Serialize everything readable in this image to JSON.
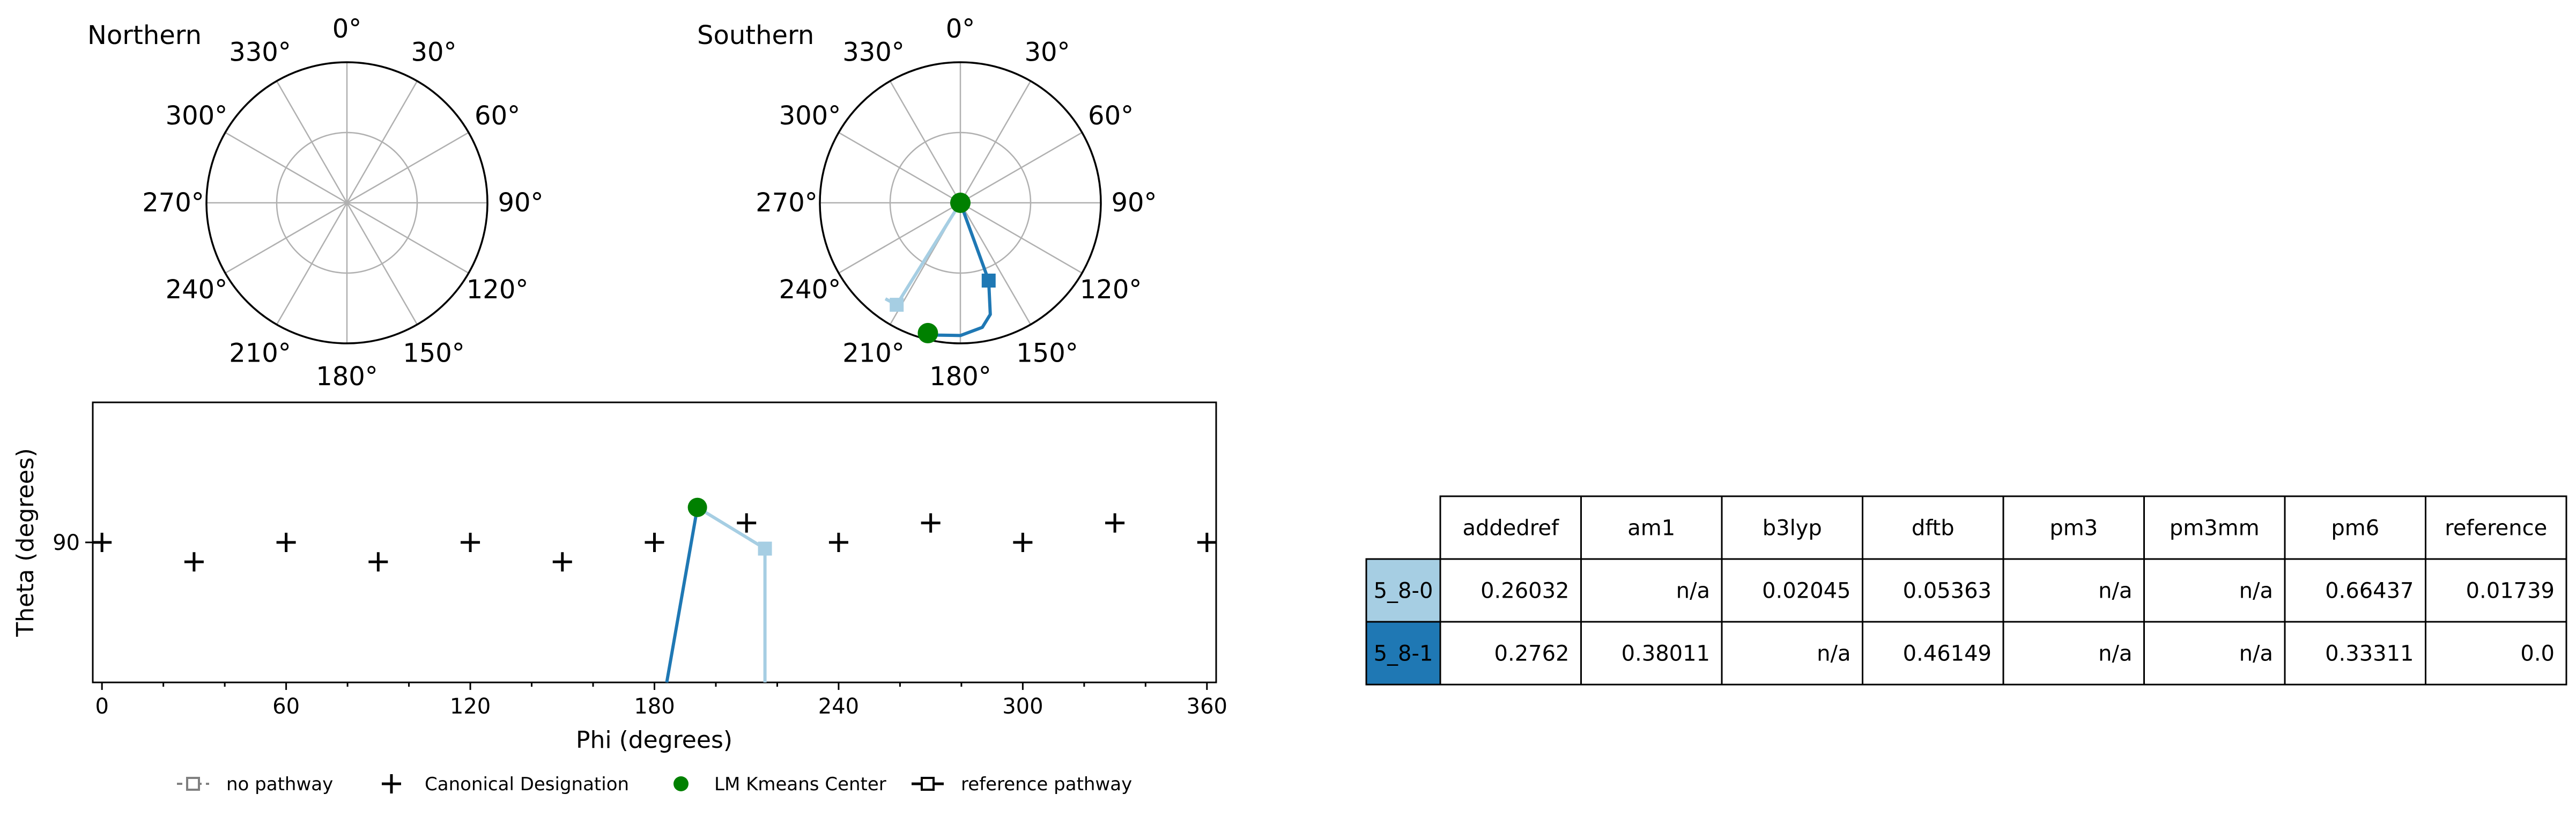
{
  "chart_data": [
    {
      "type": "polar",
      "title": "Northern",
      "angular_ticks": [
        "0°",
        "30°",
        "60°",
        "90°",
        "120°",
        "150°",
        "180°",
        "210°",
        "240°",
        "270°",
        "300°",
        "330°"
      ],
      "radial_ticks": [],
      "grid": true,
      "series": []
    },
    {
      "type": "polar",
      "title": "Southern",
      "angular_ticks": [
        "0°",
        "30°",
        "60°",
        "90°",
        "120°",
        "150°",
        "180°",
        "210°",
        "240°",
        "270°",
        "300°",
        "330°"
      ],
      "radial_ticks": [],
      "grid": true,
      "rlim": [
        180,
        90
      ],
      "series": [
        {
          "name": "LM Kmeans Center",
          "kind": "marker",
          "color": "#008000",
          "points": [
            [
              0,
              180
            ],
            [
              194,
              94
            ]
          ]
        },
        {
          "name": "5_8-1",
          "kind": "path",
          "color": "#1f78b4",
          "points": [
            [
              0,
              180
            ],
            [
              160,
              127
            ],
            [
              165,
              106
            ],
            [
              170,
              99
            ],
            [
              180,
              95
            ],
            [
              190,
              94
            ],
            [
              194,
              94
            ]
          ],
          "end_marker": "square"
        },
        {
          "name": "5_8-0",
          "kind": "path",
          "color": "#a6cee3",
          "points": [
            [
              0,
              180
            ],
            [
              212,
              103
            ],
            [
              218,
              102
            ]
          ],
          "end_marker": "square"
        }
      ]
    },
    {
      "type": "line",
      "xlabel": "Phi (degrees)",
      "ylabel": "Theta (degrees)",
      "xlim": [
        -3,
        363
      ],
      "ylim": [
        72,
        108
      ],
      "xticks": [
        0,
        60,
        120,
        180,
        240,
        300,
        360
      ],
      "yticks": [
        90
      ],
      "grid": false,
      "legend_position": "bottom",
      "canonical_points": [
        [
          0,
          90
        ],
        [
          30,
          87.5
        ],
        [
          60,
          90
        ],
        [
          90,
          87.5
        ],
        [
          120,
          90
        ],
        [
          150,
          87.5
        ],
        [
          180,
          90
        ],
        [
          210,
          92.5
        ],
        [
          240,
          90
        ],
        [
          270,
          92.5
        ],
        [
          300,
          90
        ],
        [
          330,
          92.5
        ],
        [
          360,
          90
        ]
      ],
      "kmeans_centers": [
        [
          194,
          94.5
        ]
      ],
      "pathways": [
        {
          "name": "5_8-1",
          "color": "#1f78b4",
          "points": [
            [
              184,
              72
            ],
            [
              194,
              94.5
            ]
          ]
        },
        {
          "name": "5_8-0",
          "color": "#a6cee3",
          "points": [
            [
              194,
              94.5
            ],
            [
              216,
              89.2
            ],
            [
              216,
              72
            ]
          ],
          "end_marker_index": 1
        }
      ]
    },
    {
      "type": "table",
      "columns": [
        "addedref",
        "am1",
        "b3lyp",
        "dftb",
        "pm3",
        "pm3mm",
        "pm6",
        "reference"
      ],
      "rows": [
        {
          "label": "5_8-0",
          "color": "#a6cee3",
          "values": [
            "0.26032",
            "n/a",
            "0.02045",
            "0.05363",
            "n/a",
            "n/a",
            "0.66437",
            "0.01739"
          ]
        },
        {
          "label": "5_8-1",
          "color": "#1f78b4",
          "values": [
            "0.2762",
            "0.38011",
            "n/a",
            "0.46149",
            "n/a",
            "n/a",
            "0.33311",
            "0.0"
          ]
        }
      ]
    }
  ],
  "legend": [
    {
      "label": "no pathway",
      "symbol": "dashed-square",
      "color": "#808080"
    },
    {
      "label": "Canonical Designation",
      "symbol": "plus",
      "color": "#000000"
    },
    {
      "label": "LM Kmeans Center",
      "symbol": "circle",
      "color": "#008000"
    },
    {
      "label": "reference pathway",
      "symbol": "line-square",
      "color": "#000000"
    }
  ]
}
